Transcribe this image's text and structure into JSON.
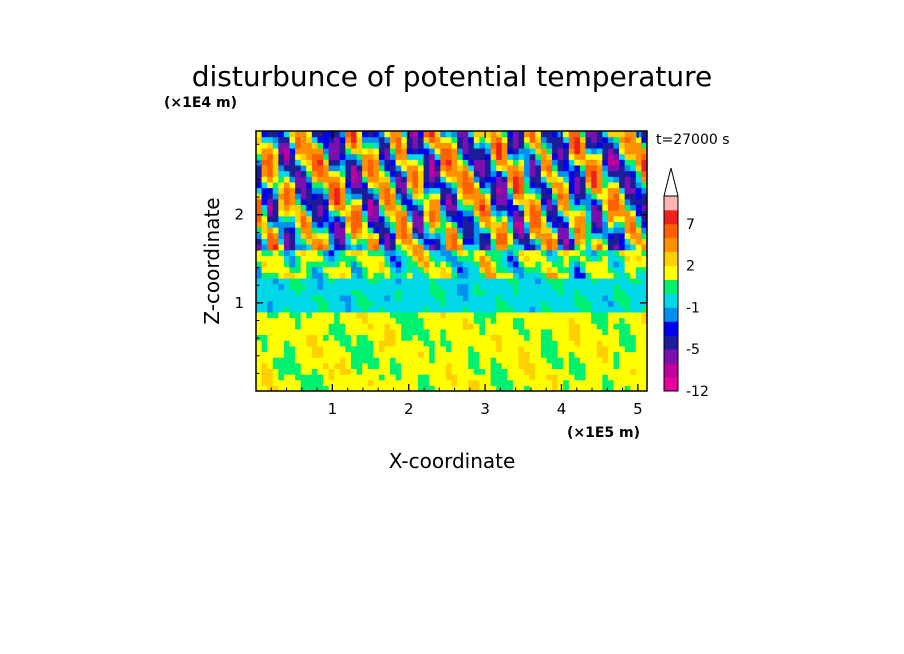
{
  "chart_data": {
    "type": "heatmap",
    "title": "disturbunce of potential temperature",
    "time_label": "t=27000 s",
    "xlabel": "X-coordinate",
    "ylabel": "Z-coordinate",
    "x_unit": "(×1E5 m)",
    "y_unit": "(×1E4 m)",
    "xlim": [
      0,
      5.12
    ],
    "ylim": [
      0,
      2.95
    ],
    "x_ticks": [
      1,
      2,
      3,
      4,
      5
    ],
    "y_ticks": [
      1,
      2
    ],
    "colorbar": {
      "levels": [
        -12,
        -9,
        -7,
        -5,
        -3,
        -2,
        -1,
        0,
        1,
        2,
        3,
        5,
        7,
        9,
        12
      ],
      "labels": [
        "-12",
        "-5",
        "-1",
        "2",
        "7"
      ],
      "colors": [
        "#e8009c",
        "#c0009c",
        "#7a10b0",
        "#1d1d9c",
        "#0000f0",
        "#0090f0",
        "#00d8e8",
        "#00f070",
        "#ffff00",
        "#ffd000",
        "#ff9000",
        "#ff6000",
        "#f02020",
        "#ffb4b4"
      ],
      "extend_top": true
    }
  }
}
